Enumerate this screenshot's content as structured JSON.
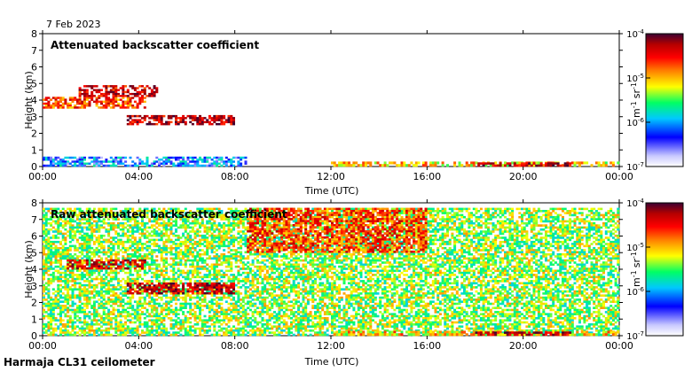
{
  "date": "7 Feb 2023",
  "footer": "Harmaja CL31 ceilometer",
  "colorbar": {
    "ticks": [
      {
        "base": "10",
        "exp": "-4",
        "value": -4
      },
      {
        "base": "10",
        "exp": "-5",
        "value": -5
      },
      {
        "base": "10",
        "exp": "-6",
        "value": -6
      },
      {
        "base": "10",
        "exp": "-7",
        "value": -7
      }
    ],
    "unit": {
      "m": "m",
      "m_exp": "-1",
      "sr": "sr",
      "sr_exp": "-1"
    },
    "colors": [
      "#ffffff",
      "#c8c8ff",
      "#0000ff",
      "#00c8ff",
      "#00ff64",
      "#ffff00",
      "#ff8000",
      "#ff0000",
      "#b40000",
      "#3c0032"
    ]
  },
  "chart_data": [
    {
      "type": "heatmap",
      "title": "Attenuated backscatter coefficient",
      "xlabel": "Time (UTC)",
      "ylabel": "Height (km)",
      "x_ticks": [
        "00:00",
        "04:00",
        "08:00",
        "12:00",
        "16:00",
        "20:00",
        "00:00"
      ],
      "xlim_hours": [
        0,
        24
      ],
      "y_ticks": [
        0,
        1,
        2,
        3,
        4,
        5,
        6,
        7,
        8
      ],
      "ylim": [
        0,
        8
      ],
      "color_scale": "log",
      "color_range": [
        1e-07,
        0.0001
      ],
      "features": [
        {
          "t0": 0.0,
          "t1": 4.3,
          "h0": 3.5,
          "h1": 4.2,
          "log_beta": -4.8
        },
        {
          "t0": 1.5,
          "t1": 4.8,
          "h0": 4.2,
          "h1": 4.9,
          "log_beta": -4.5
        },
        {
          "t0": 3.5,
          "t1": 8.0,
          "h0": 2.5,
          "h1": 3.1,
          "log_beta": -4.4
        },
        {
          "t0": 0.0,
          "t1": 8.5,
          "h0": 0.0,
          "h1": 0.6,
          "log_beta": -6.2
        },
        {
          "t0": 12.0,
          "t1": 24.0,
          "h0": 0.0,
          "h1": 0.3,
          "log_beta": -5.2
        },
        {
          "t0": 18.0,
          "t1": 22.0,
          "h0": 0.0,
          "h1": 0.25,
          "log_beta": -4.4
        }
      ]
    },
    {
      "type": "heatmap",
      "title": "Raw attenuated backscatter coefficient",
      "xlabel": "Time (UTC)",
      "ylabel": "Height (km)",
      "x_ticks": [
        "00:00",
        "04:00",
        "08:00",
        "12:00",
        "16:00",
        "20:00",
        "00:00"
      ],
      "xlim_hours": [
        0,
        24
      ],
      "y_ticks": [
        0,
        1,
        2,
        3,
        4,
        5,
        6,
        7,
        8
      ],
      "ylim": [
        0,
        8
      ],
      "color_scale": "log",
      "color_range": [
        1e-07,
        0.0001
      ],
      "features": [
        {
          "t0": 0.0,
          "t1": 24.0,
          "h0": 0.0,
          "h1": 7.7,
          "log_beta": -5.5
        },
        {
          "t0": 8.5,
          "t1": 16.0,
          "h0": 5.0,
          "h1": 7.7,
          "log_beta": -4.8
        },
        {
          "t0": 1.0,
          "t1": 4.3,
          "h0": 4.0,
          "h1": 4.6,
          "log_beta": -4.5
        },
        {
          "t0": 3.5,
          "t1": 8.0,
          "h0": 2.5,
          "h1": 3.2,
          "log_beta": -4.4
        },
        {
          "t0": 12.0,
          "t1": 24.0,
          "h0": 0.0,
          "h1": 0.3,
          "log_beta": -5.2
        },
        {
          "t0": 18.0,
          "t1": 22.0,
          "h0": 0.0,
          "h1": 0.25,
          "log_beta": -4.4
        }
      ]
    }
  ]
}
